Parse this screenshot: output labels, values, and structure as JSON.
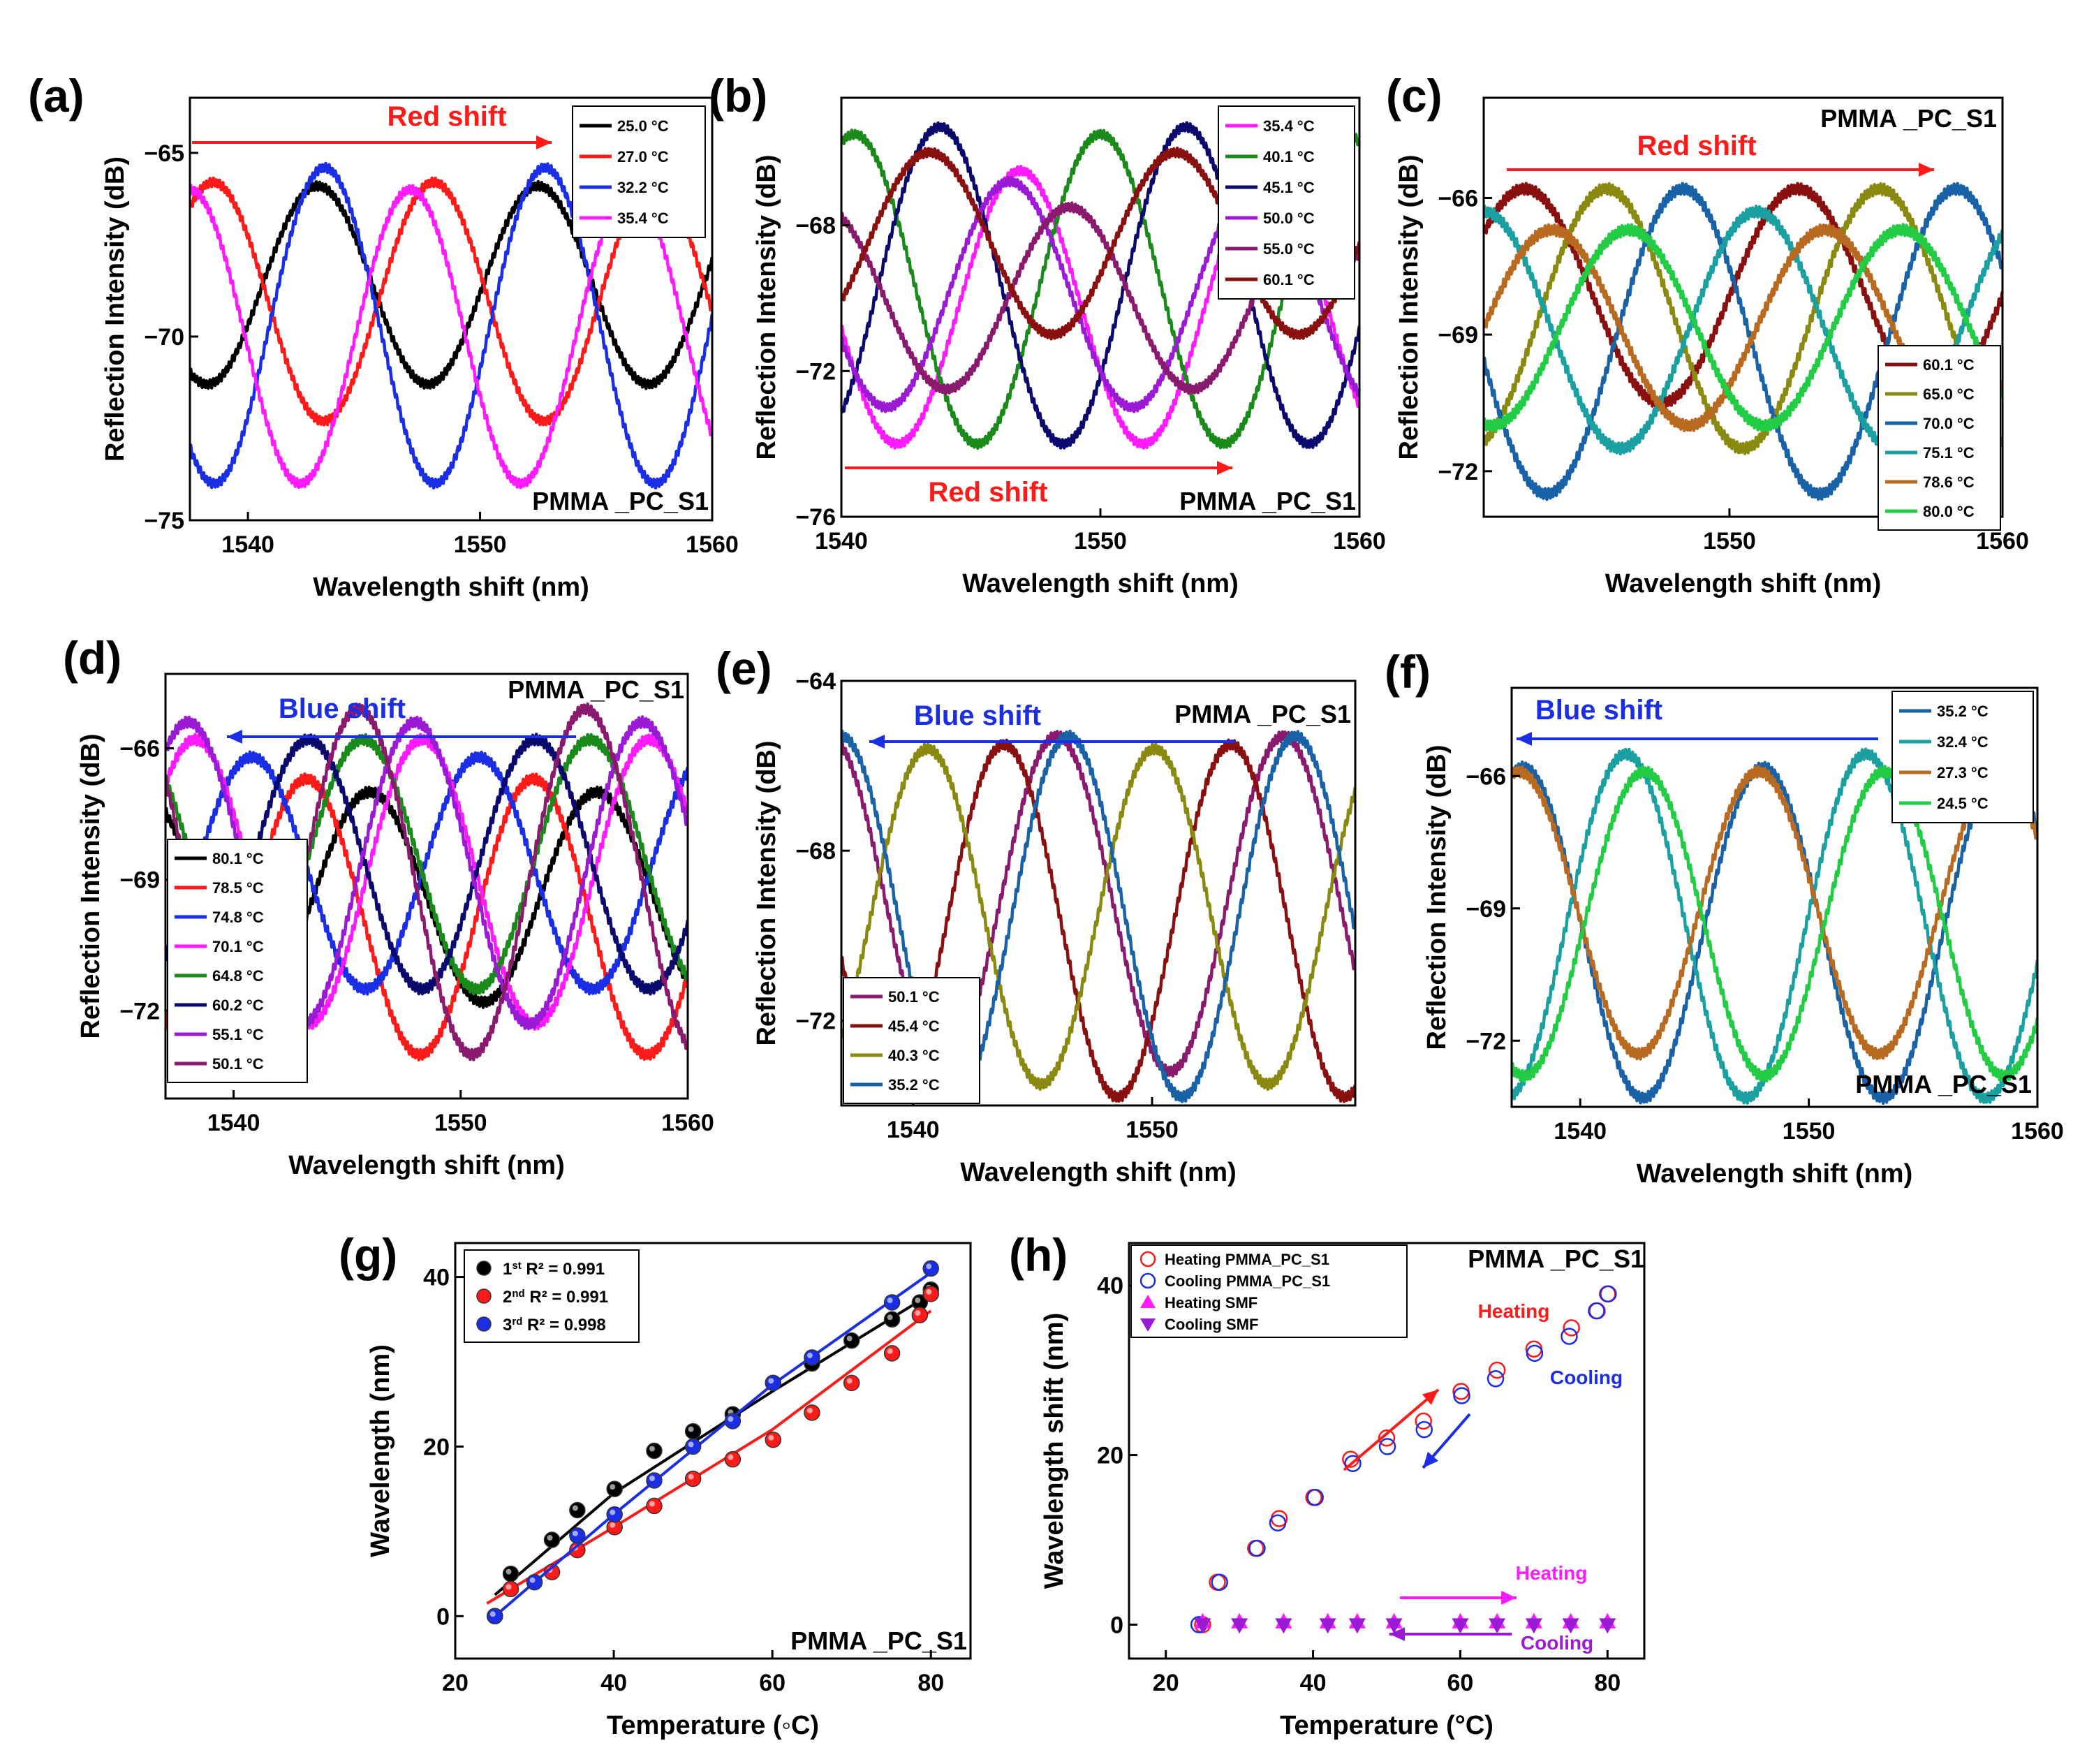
{
  "colors": {
    "c_25.0": "#000000",
    "c_27.0": "#ff1a1a",
    "c_32.2": "#1a2ee6",
    "c_35.4": "#ff1aff",
    "c_40.1": "#1a8a1a",
    "c_45.1": "#0a0a6e",
    "c_50.0": "#9a1ad6",
    "c_55.0": "#8a1a6e",
    "c_60.1": "#8a1010",
    "c_65.0": "#8a8a10",
    "c_70.0": "#1a62a8",
    "c_75.1": "#1aa0a0",
    "c_78.6": "#b86a20",
    "c_80.0": "#22cc44",
    "red": "#ff1a1a",
    "blue": "#1a2ee6",
    "magenta": "#ff1aff",
    "violet": "#9a1ad6"
  },
  "panels": {
    "a": {
      "letter": "(a)",
      "xlabel": "Wavelength shift (nm)",
      "ylabel": "Reflection Intensity (dB)",
      "annotation": "PMMA _PC_S1",
      "shift": "Red shift",
      "xticks": [
        "1540",
        "1550",
        "1560"
      ],
      "yticks": [
        "−65",
        "−70",
        "−75"
      ],
      "legend": [
        "25.0 °C",
        "27.0 °C",
        "32.2 °C",
        "35.4 °C"
      ]
    },
    "b": {
      "letter": "(b)",
      "xlabel": "Wavelength shift (nm)",
      "ylabel": "Reflection Intensity (dB)",
      "annotation": "PMMA _PC_S1",
      "shift": "Red shift",
      "xticks": [
        "1540",
        "1550",
        "1560"
      ],
      "yticks": [
        "−68",
        "−72",
        "−76"
      ],
      "legend": [
        "35.4 °C",
        "40.1 °C",
        "45.1 °C",
        "50.0 °C",
        "55.0 °C",
        "60.1 °C"
      ]
    },
    "c": {
      "letter": "(c)",
      "xlabel": "Wavelength shift (nm)",
      "ylabel": "Reflection Intensity (dB)",
      "annotation": "PMMA _PC_S1",
      "shift": "Red shift",
      "xticks": [
        "1550",
        "1560"
      ],
      "yticks": [
        "−66",
        "−69",
        "−72"
      ],
      "legend": [
        "60.1 °C",
        "65.0 °C",
        "70.0 °C",
        "75.1 °C",
        "78.6 °C",
        "80.0 °C"
      ]
    },
    "d": {
      "letter": "(d)",
      "xlabel": "Wavelength shift (nm)",
      "ylabel": "Reflection Intensity (dB)",
      "annotation": "PMMA _PC_S1",
      "shift": "Blue shift",
      "xticks": [
        "1540",
        "1550",
        "1560"
      ],
      "yticks": [
        "−66",
        "−69",
        "−72"
      ],
      "legend": [
        "80.1 °C",
        "78.5 °C",
        "74.8 °C",
        "70.1 °C",
        "64.8 °C",
        "60.2 °C",
        "55.1 °C",
        "50.1 °C"
      ]
    },
    "e": {
      "letter": "(e)",
      "xlabel": "Wavelength shift (nm)",
      "ylabel": "Reflection Intensity (dB)",
      "annotation": "PMMA _PC_S1",
      "shift": "Blue shift",
      "xticks": [
        "1540",
        "1550"
      ],
      "yticks": [
        "−64",
        "−68",
        "−72"
      ],
      "legend": [
        "50.1 °C",
        "45.4 °C",
        "40.3 °C",
        "35.2 °C"
      ]
    },
    "f": {
      "letter": "(f)",
      "xlabel": "Wavelength shift (nm)",
      "ylabel": "Reflection Intensity (dB)",
      "annotation": "PMMA _PC_S1",
      "shift": "Blue shift",
      "xticks": [
        "1540",
        "1550",
        "1560"
      ],
      "yticks": [
        "−66",
        "−69",
        "−72"
      ],
      "legend": [
        "35.2 °C",
        "32.4 °C",
        "27.3 °C",
        "24.5 °C"
      ]
    },
    "g": {
      "letter": "(g)",
      "xlabel": "Temperature (◦C)",
      "ylabel": "Wavelength (nm)",
      "annotation": "PMMA _PC_S1",
      "xticks": [
        "20",
        "40",
        "60",
        "80"
      ],
      "yticks": [
        "0",
        "20",
        "40"
      ],
      "legend": [
        {
          "ord": "1",
          "sup": "st",
          "r2": " R² = 0.991"
        },
        {
          "ord": "2",
          "sup": "nd",
          "r2": " R² = 0.991"
        },
        {
          "ord": "3",
          "sup": "rd",
          "r2": " R² = 0.998"
        }
      ]
    },
    "h": {
      "letter": "(h)",
      "xlabel": "Temperature (°C)",
      "ylabel": "Wavelength shift (nm)",
      "annotation": "PMMA _PC_S1",
      "xticks": [
        "20",
        "40",
        "60",
        "80"
      ],
      "yticks": [
        "0",
        "20",
        "40"
      ],
      "legend": [
        "Heating PMMA_PC_S1",
        "Cooling PMMA_PC_S1",
        "Heating SMF",
        "Cooling SMF"
      ],
      "labels": {
        "heating": "Heating",
        "cooling": "Cooling"
      }
    }
  },
  "chart_data": [
    {
      "panel": "a",
      "type": "line",
      "x_range": [
        1537.5,
        1560
      ],
      "ylim": [
        -75,
        -63.5
      ],
      "series": [
        {
          "name": "25.0 °C",
          "color_key": "c_25.0",
          "period": 9.5,
          "peak": 1543.0,
          "max": -65.9,
          "min": -71.3,
          "depth_mod": [
            -65.9,
            -67.9
          ]
        },
        {
          "name": "27.0 °C",
          "color_key": "c_27.0",
          "period": 9.5,
          "peak": 1548.0,
          "max": -65.8,
          "min": -72.3
        },
        {
          "name": "32.2 °C",
          "color_key": "c_32.2",
          "period": 9.5,
          "peak": 1552.8,
          "max": -65.4,
          "min": -74.0
        },
        {
          "name": "35.4 °C",
          "color_key": "c_35.4",
          "period": 9.5,
          "peak": 1547.0,
          "max": -66.0,
          "min": -74.0
        }
      ]
    },
    {
      "panel": "b",
      "type": "line",
      "x_range": [
        1540,
        1560
      ],
      "ylim": [
        -76,
        -64.5
      ],
      "series": [
        {
          "name": "35.4 °C",
          "color_key": "c_35.4",
          "period": 9.5,
          "peak": 1546.9,
          "max": -66.5,
          "min": -74.0
        },
        {
          "name": "40.1 °C",
          "color_key": "c_40.1",
          "period": 9.5,
          "peak": 1550.0,
          "max": -65.5,
          "min": -74.0
        },
        {
          "name": "45.1 °C",
          "color_key": "c_45.1",
          "period": 9.5,
          "peak": 1553.3,
          "max": -65.3,
          "min": -74.0
        },
        {
          "name": "50.0 °C",
          "color_key": "c_50.0",
          "period": 9.5,
          "peak": 1546.5,
          "max": -66.8,
          "min": -73.0
        },
        {
          "name": "55.0 °C",
          "color_key": "c_55.0",
          "period": 9.5,
          "peak": 1548.8,
          "max": -67.5,
          "min": -72.5
        },
        {
          "name": "60.1 °C",
          "color_key": "c_60.1",
          "period": 9.5,
          "peak": 1543.4,
          "max": -66.0,
          "min": -71.0
        }
      ]
    },
    {
      "panel": "c",
      "type": "line",
      "x_range": [
        1541,
        1560
      ],
      "ylim": [
        -73,
        -63.8
      ],
      "series": [
        {
          "name": "60.1 °C",
          "color_key": "c_60.1",
          "period": 10.0,
          "peak": 1542.5,
          "max": -65.8,
          "min": -70.5
        },
        {
          "name": "65.0 °C",
          "color_key": "c_65.0",
          "period": 10.0,
          "peak": 1545.5,
          "max": -65.8,
          "min": -71.5
        },
        {
          "name": "70.0 °C",
          "color_key": "c_70.0",
          "period": 10.0,
          "peak": 1548.3,
          "max": -65.8,
          "min": -72.5
        },
        {
          "name": "75.1 °C",
          "color_key": "c_75.1",
          "period": 10.0,
          "peak": 1551.0,
          "max": -66.3,
          "min": -71.5
        },
        {
          "name": "78.6 °C",
          "color_key": "c_78.6",
          "period": 10.0,
          "peak": 1553.5,
          "max": -66.7,
          "min": -71.0
        },
        {
          "name": "80.0 °C",
          "color_key": "c_80.0",
          "period": 10.0,
          "peak": 1556.3,
          "max": -66.7,
          "min": -71.0
        }
      ]
    },
    {
      "panel": "d",
      "type": "line",
      "x_range": [
        1537,
        1560
      ],
      "ylim": [
        -74,
        -64.3
      ],
      "series": [
        {
          "name": "80.1 °C",
          "color_key": "c_25.0",
          "period": 10.0,
          "peak": 1556.0,
          "max": -67.0,
          "min": -71.8
        },
        {
          "name": "78.5 °C",
          "color_key": "c_27.0",
          "period": 10.0,
          "peak": 1553.2,
          "max": -66.7,
          "min": -73.0
        },
        {
          "name": "74.8 °C",
          "color_key": "c_32.2",
          "period": 10.0,
          "peak": 1550.8,
          "max": -66.2,
          "min": -71.5
        },
        {
          "name": "70.1 °C",
          "color_key": "c_35.4",
          "period": 10.0,
          "peak": 1548.3,
          "max": -65.8,
          "min": -72.3
        },
        {
          "name": "64.8 °C",
          "color_key": "c_40.1",
          "period": 10.0,
          "peak": 1545.7,
          "max": -65.8,
          "min": -71.5
        },
        {
          "name": "60.2 °C",
          "color_key": "c_45.1",
          "period": 10.0,
          "peak": 1543.3,
          "max": -65.8,
          "min": -71.5
        },
        {
          "name": "55.1 °C",
          "color_key": "c_50.0",
          "period": 10.0,
          "peak": 1558.0,
          "max": -65.4,
          "min": -72.3
        },
        {
          "name": "50.1 °C",
          "color_key": "c_55.0",
          "period": 10.0,
          "peak": 1555.5,
          "max": -65.1,
          "min": -73.0
        }
      ]
    },
    {
      "panel": "e",
      "type": "line",
      "x_range": [
        1537,
        1558.5
      ],
      "ylim": [
        -74,
        -64
      ],
      "series": [
        {
          "name": "50.1 °C",
          "color_key": "c_55.0",
          "period": 9.5,
          "peak": 1555.5,
          "max": -65.3,
          "min": -73.2
        },
        {
          "name": "45.4 °C",
          "color_key": "c_60.1",
          "period": 9.5,
          "peak": 1553.3,
          "max": -65.5,
          "min": -73.8
        },
        {
          "name": "40.3 °C",
          "color_key": "c_65.0",
          "period": 9.5,
          "peak": 1550.1,
          "max": -65.6,
          "min": -73.5
        },
        {
          "name": "35.2 °C",
          "color_key": "c_70.0",
          "period": 9.5,
          "peak": 1556.0,
          "max": -65.3,
          "min": -73.8
        }
      ]
    },
    {
      "panel": "f",
      "type": "line",
      "x_range": [
        1537,
        1560
      ],
      "ylim": [
        -73.5,
        -64
      ],
      "series": [
        {
          "name": "35.2 °C",
          "color_key": "c_70.0",
          "period": 10.5,
          "peak": 1537.5,
          "max": -65.8,
          "min": -73.3
        },
        {
          "name": "32.4 °C",
          "color_key": "c_75.1",
          "period": 10.5,
          "peak": 1552.5,
          "max": -65.5,
          "min": -73.3
        },
        {
          "name": "27.3 °C",
          "color_key": "c_78.6",
          "period": 10.5,
          "peak": 1547.8,
          "max": -65.9,
          "min": -72.3
        },
        {
          "name": "24.5 °C",
          "color_key": "c_80.0",
          "period": 10.5,
          "peak": 1542.8,
          "max": -65.9,
          "min": -72.8
        }
      ]
    },
    {
      "panel": "g",
      "type": "scatter",
      "xlim": [
        20,
        85
      ],
      "ylim": [
        -5,
        44
      ],
      "series": [
        {
          "name": "1st",
          "color_key": "c_25.0",
          "x": [
            25,
            27,
            32.2,
            35.4,
            40.1,
            45.1,
            50,
            55,
            60.1,
            65,
            70,
            75.1,
            78.6,
            80
          ],
          "y": [
            0,
            5,
            9,
            12.5,
            15,
            19.5,
            21.8,
            23.8,
            27.5,
            29.8,
            32.5,
            35,
            37,
            38.5
          ],
          "fit": [
            [
              25,
              2.5
            ],
            [
              40,
              14.5
            ],
            [
              60,
              26.5
            ],
            [
              80,
              38
            ]
          ]
        },
        {
          "name": "2nd",
          "color_key": "c_27.0",
          "x": [
            25,
            27,
            32.2,
            35.4,
            40.1,
            45.1,
            50,
            55,
            60.1,
            65,
            70,
            75.1,
            78.6,
            80
          ],
          "y": [
            0,
            3.2,
            5.2,
            7.8,
            10.5,
            13,
            16.2,
            18.5,
            20.8,
            24,
            27.5,
            31,
            35.5,
            38
          ],
          "fit": [
            [
              24,
              1.5
            ],
            [
              40,
              10.5
            ],
            [
              60,
              22
            ],
            [
              80,
              36
            ]
          ]
        },
        {
          "name": "3rd",
          "color_key": "c_32.2",
          "x": [
            25,
            30,
            35.4,
            40.1,
            45.1,
            50,
            55,
            60.1,
            65,
            75.1,
            80
          ],
          "y": [
            0,
            4,
            9.5,
            12,
            16,
            20,
            23,
            27.5,
            30.5,
            37,
            41
          ],
          "fit": [
            [
              25,
              0
            ],
            [
              40,
              12
            ],
            [
              60,
              27.3
            ],
            [
              80,
              40.5
            ]
          ]
        }
      ]
    },
    {
      "panel": "h",
      "type": "scatter",
      "xlim": [
        15,
        85
      ],
      "ylim": [
        -4,
        45
      ],
      "series": [
        {
          "name": "Heating PMMA_PC_S1",
          "color_key": "red",
          "marker": "open-circle",
          "x": [
            25,
            27,
            32.2,
            35.4,
            40.1,
            45.1,
            50,
            55,
            60.1,
            65,
            70,
            75.1,
            78.6,
            80
          ],
          "y": [
            0,
            5,
            9,
            12.5,
            15,
            19.5,
            22,
            24,
            27.5,
            30,
            32.5,
            35,
            37,
            39
          ]
        },
        {
          "name": "Cooling PMMA_PC_S1",
          "color_key": "blue",
          "marker": "open-circle",
          "x": [
            24.5,
            27.3,
            32.4,
            35.2,
            40.3,
            45.4,
            50.1,
            55.1,
            60.2,
            64.8,
            70.1,
            74.8,
            78.5,
            80.1
          ],
          "y": [
            0,
            5,
            9,
            12,
            15,
            19,
            21,
            23,
            27,
            29,
            32,
            34,
            37,
            39
          ]
        },
        {
          "name": "Heating SMF",
          "color_key": "magenta",
          "marker": "triangle-up",
          "x": [
            25,
            30,
            36,
            42,
            46,
            51,
            60,
            65,
            70,
            75,
            80
          ],
          "y": [
            0.3,
            0.3,
            0.3,
            0.3,
            0.3,
            0.3,
            0.3,
            0.3,
            0.3,
            0.3,
            0.3
          ]
        },
        {
          "name": "Cooling SMF",
          "color_key": "violet",
          "marker": "triangle-down",
          "x": [
            25,
            30,
            36,
            42,
            46,
            51,
            60,
            65,
            70,
            75,
            80
          ],
          "y": [
            0,
            0,
            0,
            0,
            0,
            0,
            0,
            0,
            0,
            0,
            0
          ]
        }
      ]
    }
  ]
}
